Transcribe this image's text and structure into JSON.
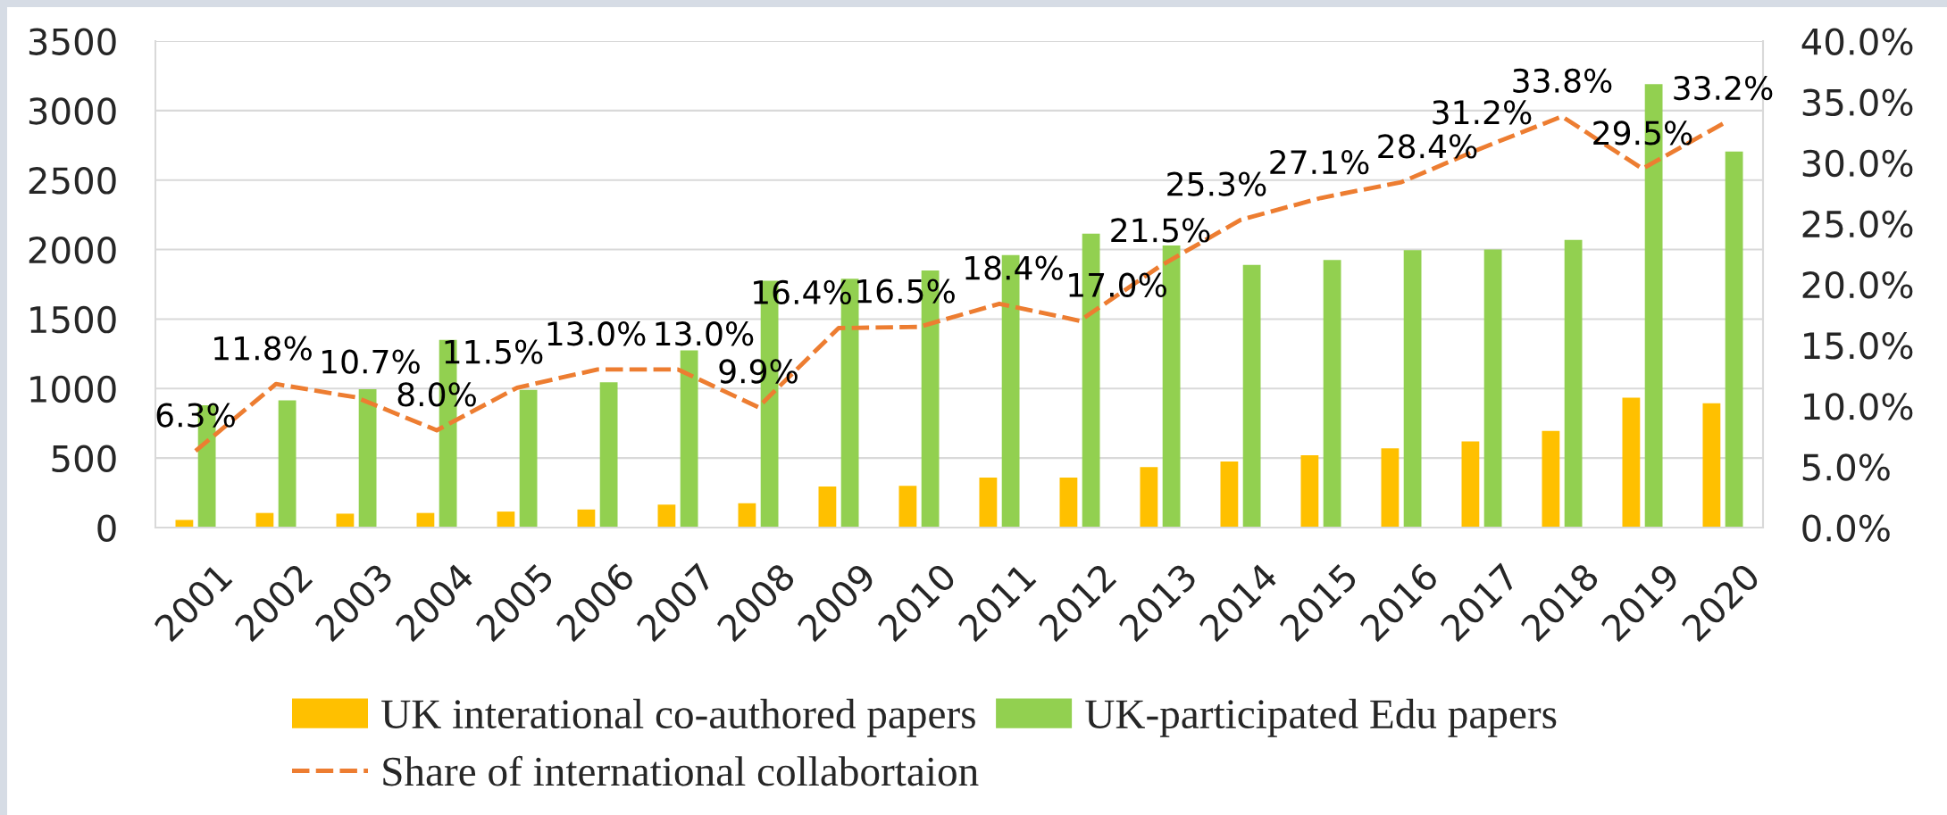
{
  "chart_data": {
    "type": "bar",
    "categories": [
      "2001",
      "2002",
      "2003",
      "2004",
      "2005",
      "2006",
      "2007",
      "2008",
      "2009",
      "2010",
      "2011",
      "2012",
      "2013",
      "2014",
      "2015",
      "2016",
      "2017",
      "2018",
      "2019",
      "2020"
    ],
    "series": [
      {
        "name": "UK interational co-authored papers",
        "color": "#ffc000",
        "values": [
          55,
          105,
          100,
          105,
          115,
          130,
          165,
          175,
          295,
          300,
          360,
          360,
          435,
          475,
          520,
          570,
          620,
          695,
          935,
          895
        ]
      },
      {
        "name": "UK-participated Edu papers",
        "color": "#92d050",
        "values": [
          880,
          915,
          995,
          1350,
          990,
          1045,
          1275,
          1775,
          1790,
          1850,
          1960,
          2115,
          2030,
          1890,
          1925,
          1995,
          2000,
          2070,
          3190,
          2705
        ]
      },
      {
        "name": "Share of international collabortaion",
        "type": "line",
        "axis": "y2",
        "color": "#ed7d31",
        "line_style": "dashed",
        "values": [
          6.3,
          11.8,
          10.7,
          8.0,
          11.5,
          13.0,
          13.0,
          9.9,
          16.4,
          16.5,
          18.4,
          17.0,
          21.5,
          25.3,
          27.1,
          28.4,
          31.2,
          33.8,
          29.5,
          33.2
        ],
        "value_labels": [
          "6.3%",
          "11.8%",
          "10.7%",
          "8.0%",
          "11.5%",
          "13.0%",
          "13.0%",
          "9.9%",
          "16.4%",
          "16.5%",
          "18.4%",
          "17.0%",
          "21.5%",
          "25.3%",
          "27.1%",
          "28.4%",
          "31.2%",
          "33.8%",
          "29.5%",
          "33.2%"
        ]
      }
    ],
    "ylim": [
      0,
      3500
    ],
    "yticks": [
      0,
      500,
      1000,
      1500,
      2000,
      2500,
      3000,
      3500
    ],
    "y2lim": [
      0,
      40
    ],
    "y2ticks": [
      {
        "value": 0,
        "label": "0.0%"
      },
      {
        "value": 5,
        "label": "5.0%"
      },
      {
        "value": 10,
        "label": "10.0%"
      },
      {
        "value": 15,
        "label": "15.0%"
      },
      {
        "value": 20,
        "label": "20.0%"
      },
      {
        "value": 25,
        "label": "25.0%"
      },
      {
        "value": 30,
        "label": "30.0%"
      },
      {
        "value": 35,
        "label": "35.0%"
      },
      {
        "value": 40,
        "label": "40.0%"
      }
    ],
    "grid": "y",
    "legend": "bottom"
  }
}
